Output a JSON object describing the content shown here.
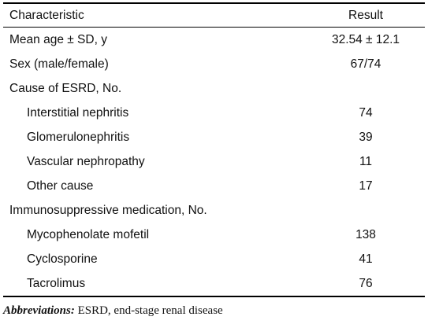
{
  "table": {
    "headers": {
      "characteristic": "Characteristic",
      "result": "Result"
    },
    "rows": [
      {
        "label": "Mean age ± SD, y",
        "value": "32.54 ± 12.1",
        "indent": false
      },
      {
        "label": "Sex (male/female)",
        "value": "67/74",
        "indent": false
      },
      {
        "label": "Cause of ESRD, No.",
        "value": "",
        "indent": false
      },
      {
        "label": "Interstitial nephritis",
        "value": "74",
        "indent": true
      },
      {
        "label": "Glomerulonephritis",
        "value": "39",
        "indent": true
      },
      {
        "label": "Vascular nephropathy",
        "value": "11",
        "indent": true
      },
      {
        "label": "Other cause",
        "value": "17",
        "indent": true
      },
      {
        "label": "Immunosuppressive medication, No.",
        "value": "",
        "indent": false
      },
      {
        "label": "Mycophenolate mofetil",
        "value": "138",
        "indent": true
      },
      {
        "label": "Cyclosporine",
        "value": "41",
        "indent": true
      },
      {
        "label": "Tacrolimus",
        "value": "76",
        "indent": true
      }
    ]
  },
  "footnote": {
    "lead": "Abbreviations:",
    "text": " ESRD, end-stage renal disease"
  }
}
